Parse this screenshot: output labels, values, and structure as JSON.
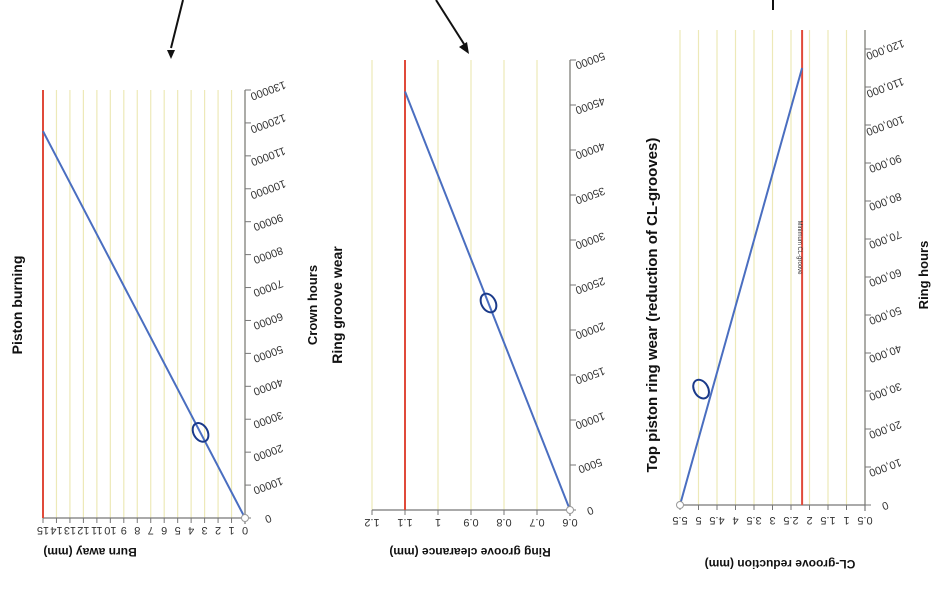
{
  "chart_data": [
    {
      "type": "line",
      "title": "Piston burning",
      "xlabel": "Crown hours",
      "ylabel": "Burn away (mm)",
      "x_ticks": [
        0,
        10000,
        20000,
        30000,
        40000,
        50000,
        60000,
        70000,
        80000,
        90000,
        100000,
        110000,
        120000,
        130000
      ],
      "x_tick_labels": [
        "0",
        "10000",
        "20000",
        "30000",
        "40000",
        "50000",
        "60000",
        "70000",
        "80000",
        "90000",
        "100000",
        "110000",
        "120000",
        "130000"
      ],
      "y_ticks": [
        0,
        1,
        2,
        3,
        4,
        5,
        6,
        7,
        8,
        9,
        10,
        11,
        12,
        13,
        14,
        15
      ],
      "y_tick_labels": [
        "0",
        "1",
        "2",
        "3",
        "4",
        "5",
        "6",
        "7",
        "8",
        "9",
        "10",
        "11",
        "12",
        "13",
        "14",
        "15"
      ],
      "xlim": [
        0,
        130000
      ],
      "ylim": [
        0,
        15
      ],
      "series": [
        {
          "x": [
            0,
            117500
          ],
          "y": [
            0,
            15
          ],
          "color": "#4a6ec0"
        }
      ],
      "limit_line": {
        "y": 15,
        "color": "#e04a3a"
      },
      "grid": "vertical",
      "grid_color": "#ede9b8",
      "marker": {
        "x": 26000,
        "y": 3.3
      }
    },
    {
      "type": "line",
      "title": "Ring groove wear",
      "xlabel": "",
      "ylabel": "Ring groove clearance (mm)",
      "x_ticks": [
        0,
        5000,
        10000,
        15000,
        20000,
        25000,
        30000,
        35000,
        40000,
        45000,
        50000
      ],
      "x_tick_labels": [
        "0",
        "5000",
        "10000",
        "15000",
        "20000",
        "25000",
        "30000",
        "35000",
        "40000",
        "45000",
        "50000"
      ],
      "y_ticks": [
        0.6,
        0.7,
        0.8,
        0.9,
        1.0,
        1.1,
        1.2
      ],
      "y_tick_labels": [
        "0.6",
        "0.7",
        "0.8",
        "0.9",
        "1",
        "1.1",
        "1.2"
      ],
      "xlim": [
        0,
        50000
      ],
      "ylim": [
        0.6,
        1.2
      ],
      "series": [
        {
          "x": [
            0,
            46500
          ],
          "y": [
            0.6,
            1.1
          ],
          "color": "#4a6ec0"
        }
      ],
      "limit_line": {
        "y": 1.1,
        "color": "#e04a3a"
      },
      "grid": "horizontal",
      "grid_color": "#ede9b8",
      "marker": {
        "x": 23000,
        "y": 0.847
      }
    },
    {
      "type": "line",
      "title": "Top piston ring wear (reduction of CL-grooves)",
      "xlabel": "Ring hours",
      "ylabel": "CL-groove reduction (mm)",
      "x_ticks": [
        0,
        10000,
        20000,
        30000,
        40000,
        50000,
        60000,
        70000,
        80000,
        90000,
        100000,
        110000,
        120000
      ],
      "x_tick_labels": [
        "0",
        "10,000",
        "20,000",
        "30,000",
        "40,000",
        "50,000",
        "60,000",
        "70,000",
        "80,000",
        "90,000",
        "100,000",
        "110,000",
        "120,000"
      ],
      "y_ticks": [
        0.5,
        1.0,
        1.5,
        2.0,
        2.5,
        3.0,
        3.5,
        4.0,
        4.5,
        5.0,
        5.5
      ],
      "y_tick_labels": [
        "0.5",
        "1",
        "1.5",
        "2",
        "2.5",
        "3",
        "3.5",
        "4",
        "4.5",
        "5",
        "5.5"
      ],
      "xlim": [
        0,
        125000
      ],
      "ylim": [
        0.5,
        5.5
      ],
      "series": [
        {
          "x": [
            0,
            115000
          ],
          "y": [
            5.5,
            2.2
          ],
          "color": "#4a6ec0"
        }
      ],
      "limit_line": {
        "y": 2.2,
        "color": "#e04a3a",
        "label": "Minimum CL-groove"
      },
      "grid": "horizontal",
      "grid_color": "#ede9b8",
      "marker": {
        "x": 30500,
        "y": 4.93
      }
    }
  ]
}
